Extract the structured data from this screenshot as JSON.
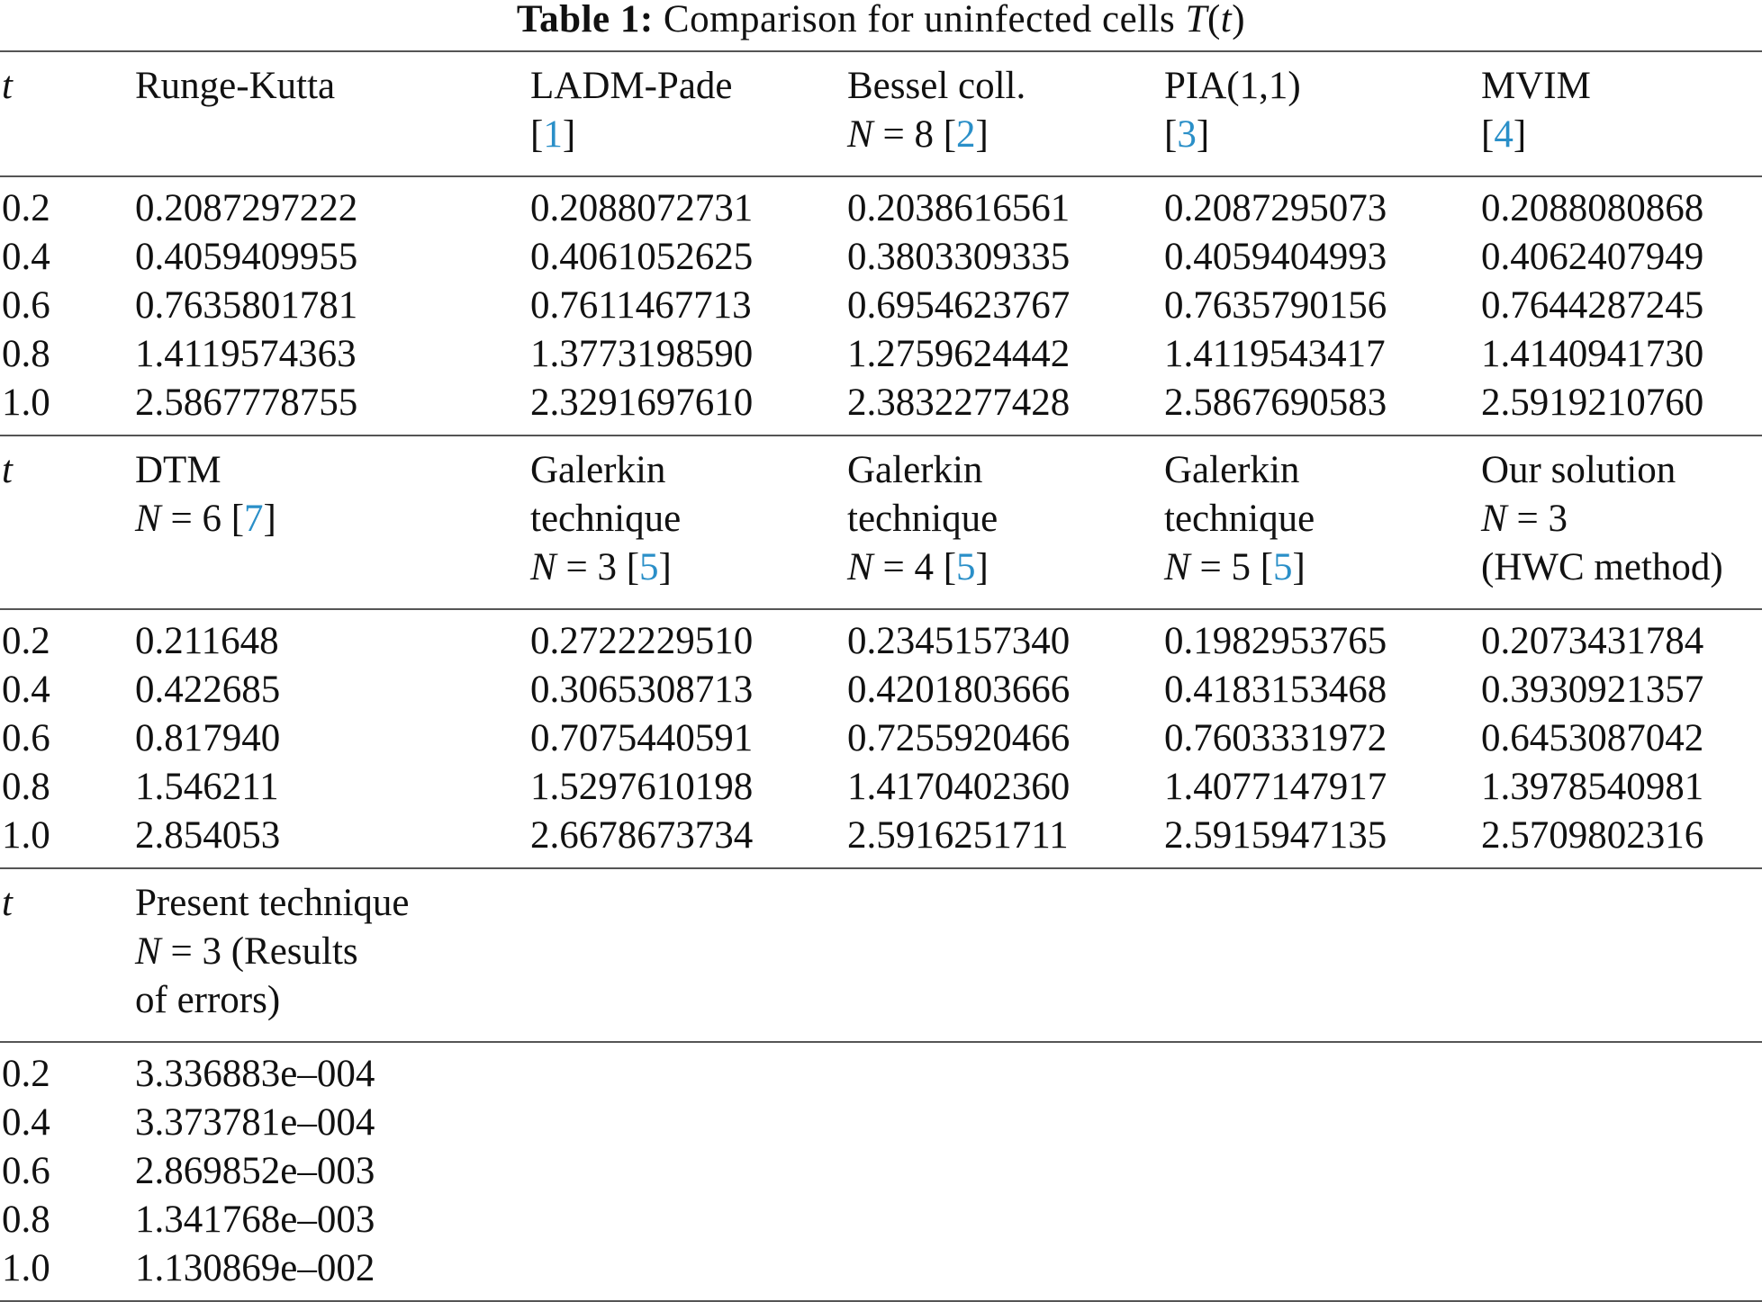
{
  "caption": {
    "label": "Table 1:",
    "text": "Comparison for uninfected cells",
    "math_symbol": "T",
    "math_arg": "t"
  },
  "sections": [
    {
      "header": [
        {
          "lines": [
            {
              "text": "t",
              "italic": true
            }
          ]
        },
        {
          "lines": [
            {
              "text": "Runge-Kutta"
            }
          ]
        },
        {
          "lines": [
            {
              "text": "LADM-Pade"
            },
            {
              "ref": "1"
            }
          ]
        },
        {
          "lines": [
            {
              "text": "Bessel coll."
            },
            {
              "n_eq": "8",
              "ref": "2"
            }
          ]
        },
        {
          "lines": [
            {
              "text": "PIA(1,1)"
            },
            {
              "ref": "3"
            }
          ]
        },
        {
          "lines": [
            {
              "text": "MVIM"
            },
            {
              "ref": "4"
            }
          ]
        }
      ],
      "rows": [
        [
          "0.2",
          "0.2087297222",
          "0.2088072731",
          "0.2038616561",
          "0.2087295073",
          "0.2088080868"
        ],
        [
          "0.4",
          "0.4059409955",
          "0.4061052625",
          "0.3803309335",
          "0.4059404993",
          "0.4062407949"
        ],
        [
          "0.6",
          "0.7635801781",
          "0.7611467713",
          "0.6954623767",
          "0.7635790156",
          "0.7644287245"
        ],
        [
          "0.8",
          "1.4119574363",
          "1.3773198590",
          "1.2759624442",
          "1.4119543417",
          "1.4140941730"
        ],
        [
          "1.0",
          "2.5867778755",
          "2.3291697610",
          "2.3832277428",
          "2.5867690583",
          "2.5919210760"
        ]
      ]
    },
    {
      "header": [
        {
          "lines": [
            {
              "text": "t",
              "italic": true
            }
          ]
        },
        {
          "lines": [
            {
              "text": "DTM"
            },
            {
              "n_eq": "6",
              "ref": "7"
            }
          ]
        },
        {
          "lines": [
            {
              "text": "Galerkin"
            },
            {
              "text": "technique"
            },
            {
              "n_eq": "3",
              "ref": "5"
            }
          ]
        },
        {
          "lines": [
            {
              "text": "Galerkin"
            },
            {
              "text": "technique"
            },
            {
              "n_eq": "4",
              "ref": "5"
            }
          ]
        },
        {
          "lines": [
            {
              "text": "Galerkin"
            },
            {
              "text": "technique"
            },
            {
              "n_eq": "5",
              "ref": "5"
            }
          ]
        },
        {
          "lines": [
            {
              "text": "Our solution"
            },
            {
              "n_eq": "3"
            },
            {
              "text": "(HWC method)"
            }
          ]
        }
      ],
      "rows": [
        [
          "0.2",
          "0.211648",
          "0.2722229510",
          "0.2345157340",
          "0.1982953765",
          "0.2073431784"
        ],
        [
          "0.4",
          "0.422685",
          "0.3065308713",
          "0.4201803666",
          "0.4183153468",
          "0.3930921357"
        ],
        [
          "0.6",
          "0.817940",
          "0.7075440591",
          "0.7255920466",
          "0.7603331972",
          "0.6453087042"
        ],
        [
          "0.8",
          "1.546211",
          "1.5297610198",
          "1.4170402360",
          "1.4077147917",
          "1.3978540981"
        ],
        [
          "1.0",
          "2.854053",
          "2.6678673734",
          "2.5916251711",
          "2.5915947135",
          "2.5709802316"
        ]
      ]
    },
    {
      "header": [
        {
          "lines": [
            {
              "text": "t",
              "italic": true
            }
          ]
        },
        {
          "lines": [
            {
              "text": "Present technique"
            },
            {
              "n_eq": "3",
              "suffix": "(Results"
            },
            {
              "text": "of errors)"
            }
          ]
        }
      ],
      "rows": [
        [
          "0.2",
          "3.336883e–004"
        ],
        [
          "0.4",
          "3.373781e–004"
        ],
        [
          "0.6",
          "2.869852e–003"
        ],
        [
          "0.8",
          "1.341768e–003"
        ],
        [
          "1.0",
          "1.130869e–002"
        ]
      ]
    }
  ]
}
